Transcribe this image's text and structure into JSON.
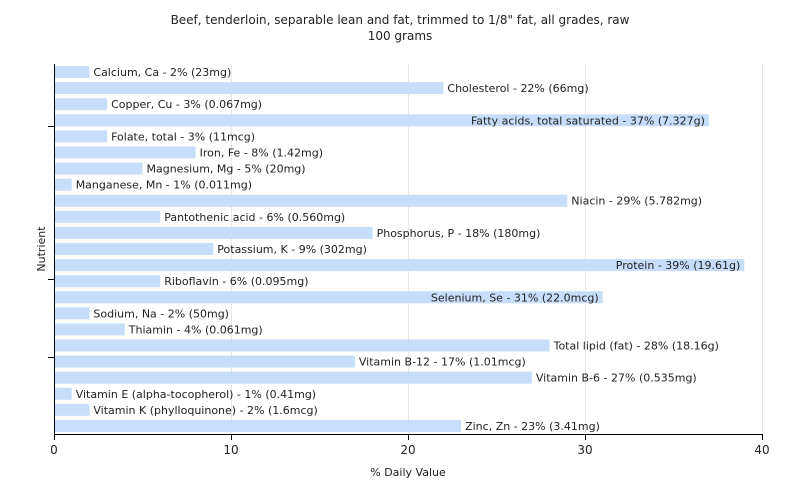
{
  "chart_data": {
    "type": "bar",
    "orientation": "horizontal",
    "title": "Beef, tenderloin, separable lean and fat, trimmed to 1/8\" fat, all grades, raw",
    "subtitle": "100 grams",
    "xlabel": "% Daily Value",
    "ylabel": "Nutrient",
    "xlim": [
      0,
      40
    ],
    "xticks": [
      0,
      10,
      20,
      30,
      40
    ],
    "grid": true,
    "bar_color": "#c6defa",
    "categories": [
      "Calcium, Ca",
      "Cholesterol",
      "Copper, Cu",
      "Fatty acids, total saturated",
      "Folate, total",
      "Iron, Fe",
      "Magnesium, Mg",
      "Manganese, Mn",
      "Niacin",
      "Pantothenic acid",
      "Phosphorus, P",
      "Potassium, K",
      "Protein",
      "Riboflavin",
      "Selenium, Se",
      "Sodium, Na",
      "Thiamin",
      "Total lipid (fat)",
      "Vitamin B-12",
      "Vitamin B-6",
      "Vitamin E (alpha-tocopherol)",
      "Vitamin K (phylloquinone)",
      "Zinc, Zn"
    ],
    "values": [
      2,
      22,
      3,
      37,
      3,
      8,
      5,
      1,
      29,
      6,
      18,
      9,
      39,
      6,
      31,
      2,
      4,
      28,
      17,
      27,
      1,
      2,
      23
    ],
    "labels": [
      "Calcium, Ca - 2% (23mg)",
      "Cholesterol - 22% (66mg)",
      "Copper, Cu - 3% (0.067mg)",
      "Fatty acids, total saturated - 37% (7.327g)",
      "Folate, total - 3% (11mcg)",
      "Iron, Fe - 8% (1.42mg)",
      "Magnesium, Mg - 5% (20mg)",
      "Manganese, Mn - 1% (0.011mg)",
      "Niacin - 29% (5.782mg)",
      "Pantothenic acid - 6% (0.560mg)",
      "Phosphorus, P - 18% (180mg)",
      "Potassium, K - 9% (302mg)",
      "Protein - 39% (19.61g)",
      "Riboflavin - 6% (0.095mg)",
      "Selenium, Se - 31% (22.0mcg)",
      "Sodium, Na - 2% (50mg)",
      "Thiamin - 4% (0.061mg)",
      "Total lipid (fat) - 28% (18.16g)",
      "Vitamin B-12 - 17% (1.01mcg)",
      "Vitamin B-6 - 27% (0.535mg)",
      "Vitamin E (alpha-tocopherol) - 1% (0.41mg)",
      "Vitamin K (phylloquinone) - 2% (1.6mcg)",
      "Zinc, Zn - 23% (3.41mg)"
    ]
  }
}
